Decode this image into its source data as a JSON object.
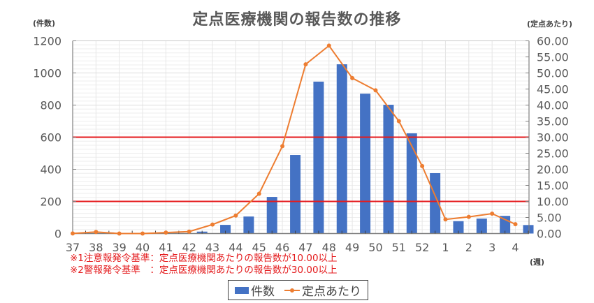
{
  "title": "定点医療機関の報告数の推移",
  "left_axis_unit": "(件数)",
  "right_axis_unit": "(定点あたり)",
  "x_axis_unit": "(週)",
  "notes": [
    "※1注意報発令基準：定点医療機関あたりの報告数が10.00以上",
    "※2警報発令基準　：定点医療機関あたりの報告数が30.00以上"
  ],
  "legend": {
    "bar_label": "件数",
    "line_label": "定点あたり"
  },
  "colors": {
    "bar": "#4472c4",
    "line": "#ed7d31",
    "threshold": "#e41a1c",
    "grid": "#e0e0e0",
    "axis": "#808080",
    "text": "#595959"
  },
  "chart_data": {
    "type": "bar",
    "title": "定点医療機関の報告数の推移",
    "xlabel": "(週)",
    "ylabel": "(件数)",
    "y2label": "(定点あたり)",
    "categories": [
      "37",
      "38",
      "39",
      "40",
      "41",
      "42",
      "43",
      "44",
      "45",
      "46",
      "47",
      "48",
      "49",
      "50",
      "51",
      "52",
      "1",
      "2",
      "3",
      "4"
    ],
    "series": [
      {
        "name": "件数",
        "type": "bar",
        "axis": "left",
        "values": [
          1,
          7,
          0,
          0,
          3,
          12,
          54,
          106,
          228,
          489,
          946,
          1054,
          871,
          802,
          624,
          376,
          77,
          93,
          110,
          53
        ]
      },
      {
        "name": "定点あたり",
        "type": "line",
        "axis": "right",
        "values": [
          0.02,
          0.5,
          0.0,
          0.0,
          0.3,
          0.6,
          2.8,
          5.6,
          12.4,
          27.2,
          52.7,
          58.5,
          48.4,
          44.6,
          35.0,
          21.0,
          4.4,
          5.2,
          6.2,
          2.9
        ]
      }
    ],
    "ylim": [
      0,
      1200
    ],
    "y_ticks": [
      "0",
      "200",
      "400",
      "600",
      "800",
      "1000",
      "1200"
    ],
    "y2lim": [
      0,
      60
    ],
    "y2_ticks": [
      "0.00",
      "5.00",
      "10.00",
      "15.00",
      "20.00",
      "25.00",
      "30.00",
      "35.00",
      "40.00",
      "45.00",
      "50.00",
      "55.00",
      "60.00"
    ],
    "thresholds": [
      {
        "label": "注意報発令基準",
        "y2": 10.0
      },
      {
        "label": "警報発令基準",
        "y2": 30.0
      }
    ],
    "grid": true,
    "legend_position": "bottom"
  }
}
